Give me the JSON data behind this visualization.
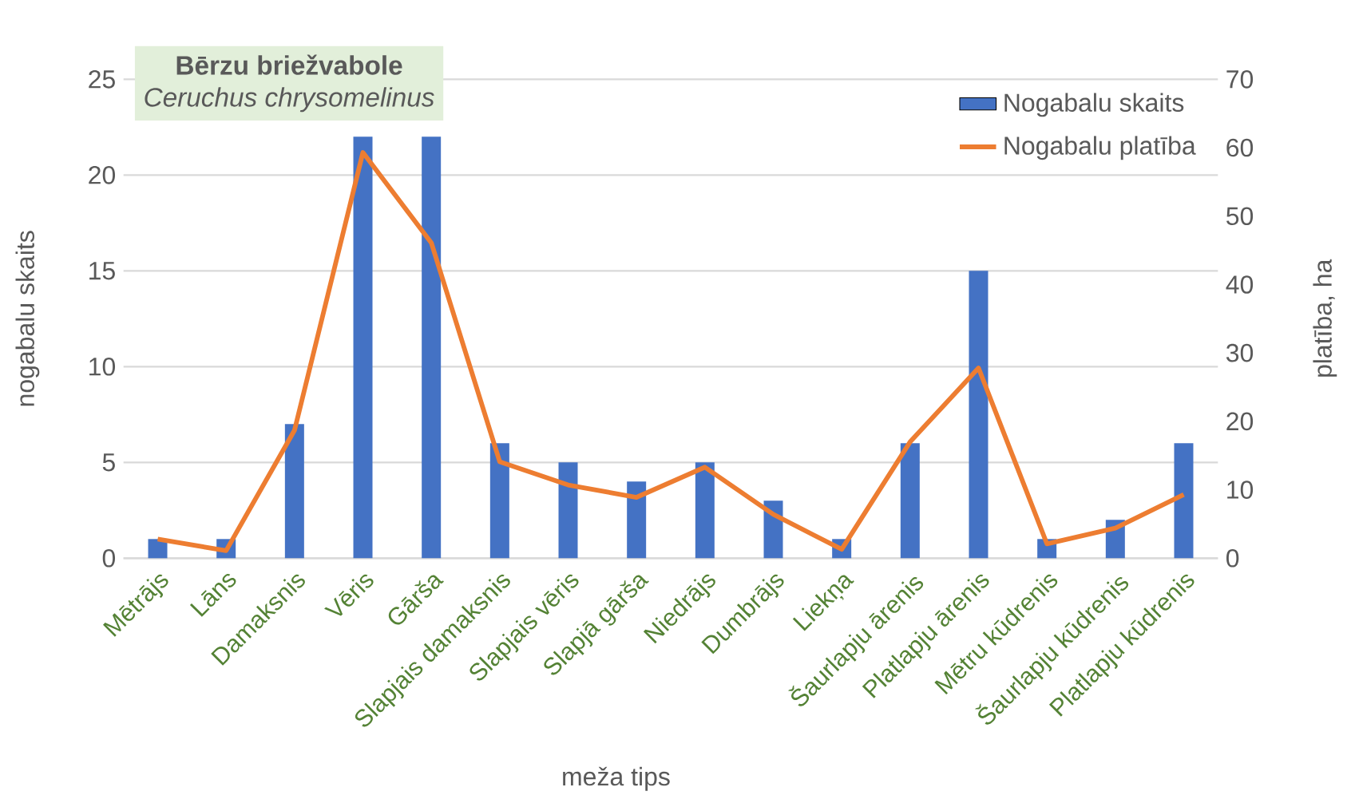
{
  "chart_data": {
    "type": "bar",
    "title": "Bērzu briežvabole",
    "subtitle": "Ceruchus chrysomelinus",
    "xlabel": "meža tips",
    "ylabel": "nogabalu skaits",
    "y2label": "platība, ha",
    "categories": [
      "Mētrājs",
      "Lāns",
      "Damaksnis",
      "Vēris",
      "Gārša",
      "Slapjais damaksnis",
      "Slapjais vēris",
      "Slapjā gārša",
      "Niedrājs",
      "Dumbrājs",
      "Liekņa",
      "Šaurlapju ārenis",
      "Platlapju ārenis",
      "Mētru kūdrenis",
      "Šaurlapju kūdrenis",
      "Platlapju kūdrenis"
    ],
    "series": [
      {
        "name": "Nogabalu skaits",
        "color": "#4472c4",
        "values": [
          1,
          1,
          7,
          22,
          22,
          6,
          5,
          4,
          5,
          3,
          1,
          6,
          15,
          1,
          2,
          6
        ]
      },
      {
        "name": "Nogabalu platība",
        "type": "line",
        "axis": "y2",
        "color": "#ed7d31",
        "values": [
          2.8,
          1.1,
          18.7,
          59.3,
          46.1,
          14.1,
          10.7,
          8.9,
          13.3,
          6.4,
          1.3,
          17,
          27.8,
          2.1,
          4.4,
          9.3
        ]
      }
    ],
    "ylim": [
      0,
      25
    ],
    "yticks": [
      0,
      5,
      10,
      15,
      20,
      25
    ],
    "y2lim": [
      0,
      70
    ],
    "y2ticks": [
      0,
      10,
      20,
      30,
      40,
      50,
      60,
      70
    ],
    "grid": "y",
    "legend": "top right"
  }
}
